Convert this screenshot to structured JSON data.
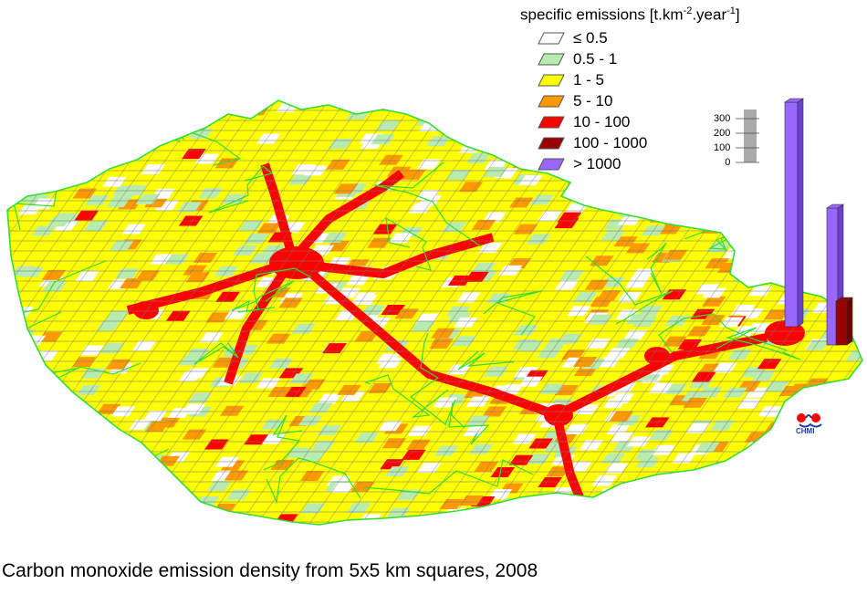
{
  "legend": {
    "title_main": "specific emissions [t.km",
    "title_exp1": "-2",
    "title_mid": ".year",
    "title_exp2": "-1",
    "title_end": "]",
    "items": [
      {
        "label": "≤ 0.5",
        "color": "#ffffff"
      },
      {
        "label": "0.5 - 1",
        "color": "#b8ebb0"
      },
      {
        "label": "1 - 5",
        "color": "#ffff00"
      },
      {
        "label": "5 - 10",
        "color": "#ff9900"
      },
      {
        "label": "10 - 100",
        "color": "#ff0000"
      },
      {
        "label": "100 - 1000",
        "color": "#990000"
      },
      {
        "label": "> 1000",
        "color": "#9966ff"
      }
    ]
  },
  "scale_bar": {
    "labels": [
      "300",
      "200",
      "100",
      "0"
    ]
  },
  "caption": "Carbon monoxide emission density from 5x5 km squares, 2008",
  "logo": {
    "text": "CHMI"
  },
  "colors": {
    "border": "#33dd33",
    "cell_outline": "#777777"
  }
}
